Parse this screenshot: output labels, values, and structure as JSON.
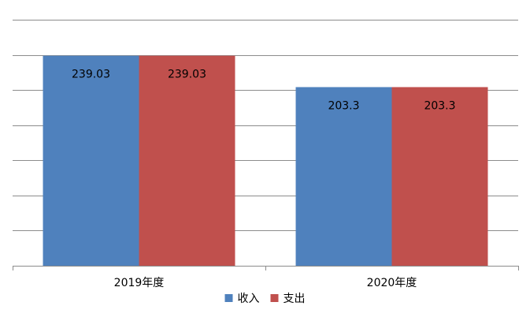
{
  "chart_data": {
    "type": "bar",
    "categories": [
      "2019年度",
      "2020年度"
    ],
    "series": [
      {
        "name": "收入",
        "values": [
          239.03,
          203.3
        ],
        "color": "#4f81bd"
      },
      {
        "name": "支出",
        "values": [
          239.03,
          203.3
        ],
        "color": "#c0504d"
      }
    ],
    "data_labels": [
      [
        "239.03",
        "203.3"
      ],
      [
        "239.03",
        "203.3"
      ]
    ],
    "ylim": [
      0,
      280
    ],
    "y_tick_step": 40,
    "grid": true,
    "legend_position": "bottom",
    "title": "",
    "xlabel": "",
    "ylabel": ""
  }
}
